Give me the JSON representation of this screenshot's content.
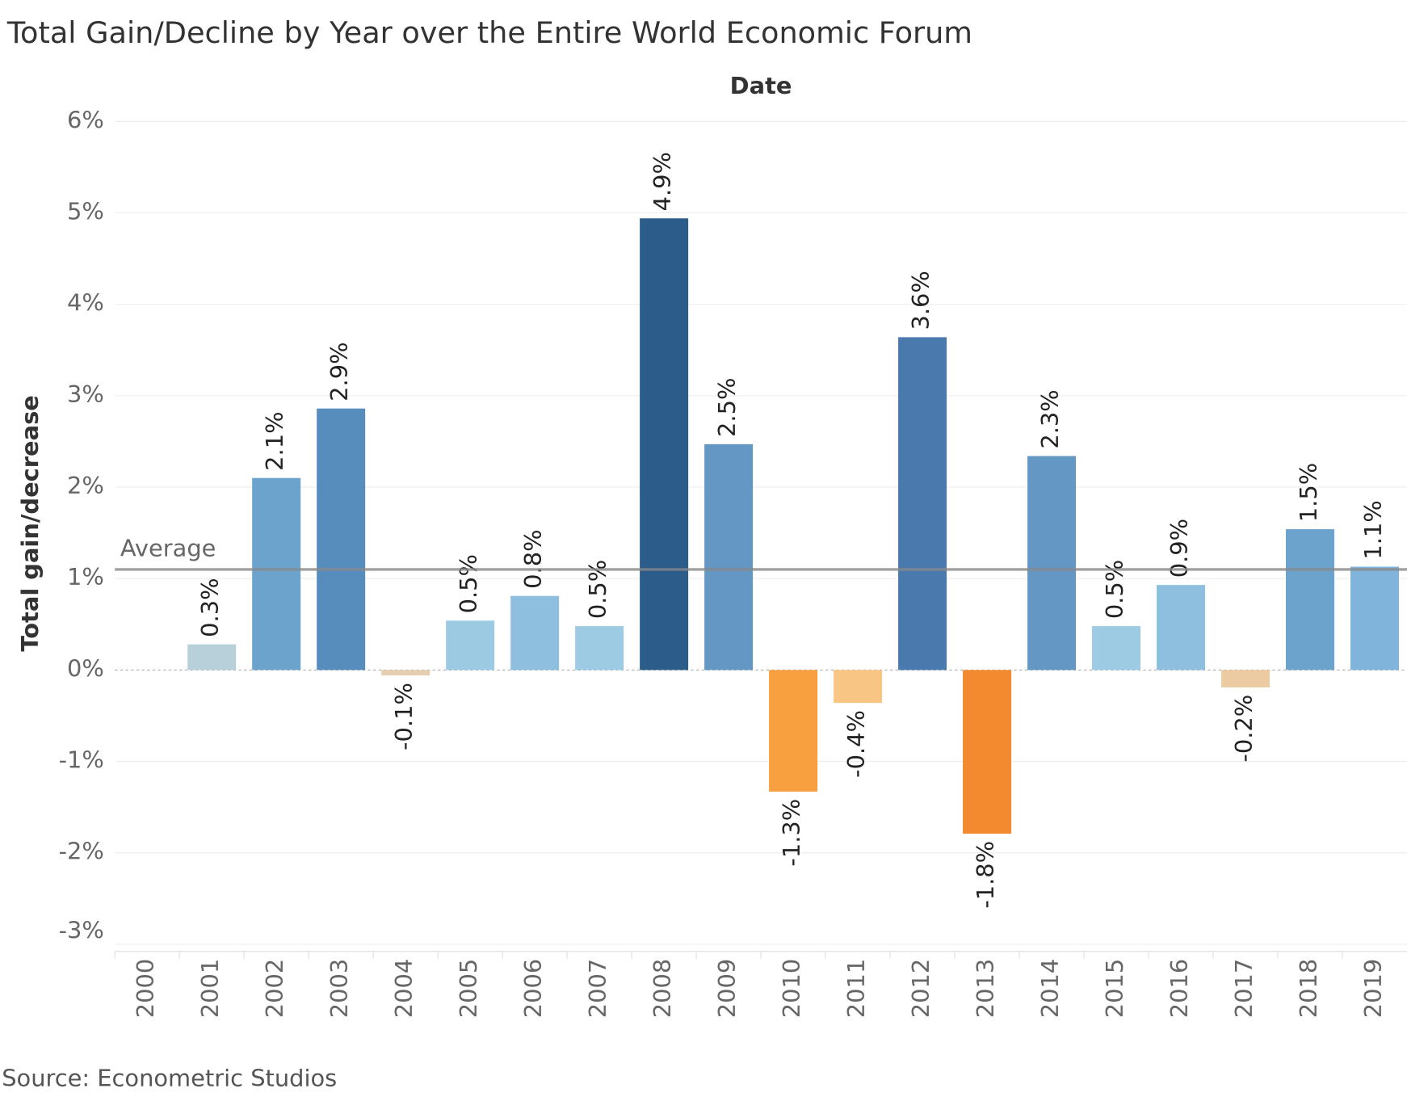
{
  "chart_data": {
    "type": "bar",
    "title": "Total Gain/Decline by Year over the Entire World Economic Forum",
    "x_label": "Date",
    "y_label": "Total gain/decrease",
    "source": "Source: Econometric Studios",
    "categories": [
      "2000",
      "2001",
      "2002",
      "2003",
      "2004",
      "2005",
      "2006",
      "2007",
      "2008",
      "2009",
      "2010",
      "2011",
      "2012",
      "2013",
      "2014",
      "2015",
      "2016",
      "2017",
      "2018",
      "2019"
    ],
    "values": [
      null,
      0.28,
      2.1,
      2.86,
      -0.06,
      0.54,
      0.81,
      0.48,
      4.94,
      2.47,
      -1.33,
      -0.36,
      3.64,
      -1.79,
      2.34,
      0.48,
      0.93,
      -0.19,
      1.54,
      1.13
    ],
    "value_labels": [
      null,
      "0.3%",
      "2.1%",
      "2.9%",
      "-0.1%",
      "0.5%",
      "0.8%",
      "0.5%",
      "4.9%",
      "2.5%",
      "-1.3%",
      "-0.4%",
      "3.6%",
      "-1.8%",
      "2.3%",
      "0.5%",
      "0.9%",
      "-0.2%",
      "1.5%",
      "1.1%"
    ],
    "colors": [
      null,
      "#b7d0d9",
      "#6ca3cc",
      "#578dbd",
      "#e6cfb0",
      "#9ccae3",
      "#8fbfdf",
      "#9ecbe4",
      "#2c5c8a",
      "#6597c5",
      "#f8a040",
      "#f8c585",
      "#4a7aad",
      "#f38a30",
      "#6597c5",
      "#9ecbe4",
      "#8fbfdf",
      "#edcba2",
      "#6ca3cc",
      "#81b4da"
    ],
    "average": {
      "label": "Average",
      "value": 1.1
    },
    "ylim": [
      -3,
      6.07
    ],
    "yticks": [
      {
        "value": -3,
        "label": "-3%"
      },
      {
        "value": -2,
        "label": "-2%"
      },
      {
        "value": -1,
        "label": "-1%"
      },
      {
        "value": 0,
        "label": "0%"
      },
      {
        "value": 1,
        "label": "1%"
      },
      {
        "value": 2,
        "label": "2%"
      },
      {
        "value": 3,
        "label": "3%"
      },
      {
        "value": 4,
        "label": "4%"
      },
      {
        "value": 5,
        "label": "5%"
      },
      {
        "value": 6,
        "label": "6%"
      }
    ],
    "grid": true
  }
}
